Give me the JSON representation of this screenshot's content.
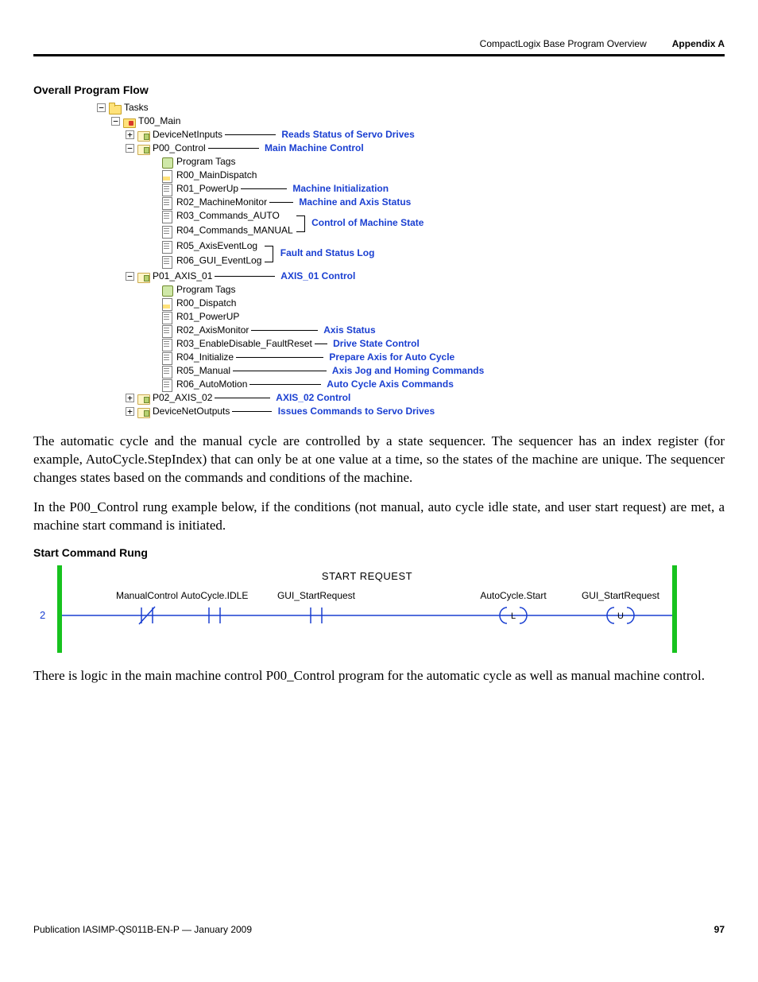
{
  "header": {
    "left": "CompactLogix Base Program Overview",
    "right": "Appendix A"
  },
  "section1_title": "Overall Program Flow",
  "tree": {
    "dash_color": "#000000",
    "annotation_color": "#1a3fd1",
    "nodes": [
      {
        "indent": 0,
        "pm": "-",
        "icon": "folder",
        "label": "Tasks"
      },
      {
        "indent": 1,
        "pm": "-",
        "icon": "folder-red",
        "label": "T00_Main"
      },
      {
        "indent": 2,
        "pm": "+",
        "icon": "prog",
        "label": "DeviceNetInputs",
        "dash": 64,
        "ann": "Reads Status of Servo Drives"
      },
      {
        "indent": 2,
        "pm": "-",
        "icon": "prog",
        "label": "P00_Control",
        "dash": 64,
        "ann": "Main Machine Control"
      },
      {
        "indent": 3,
        "icon": "tags",
        "label": "Program Tags"
      },
      {
        "indent": 3,
        "icon": "doc-y",
        "label": "R00_MainDispatch"
      },
      {
        "indent": 3,
        "icon": "doc",
        "label": "R01_PowerUp",
        "dash": 58,
        "ann": "Machine Initialization"
      },
      {
        "indent": 3,
        "icon": "doc",
        "label": "R02_MachineMonitor",
        "dash": 30,
        "ann": "Machine and Axis Status"
      },
      {
        "indent": 3,
        "icon": "doc",
        "label": "R03_Commands_AUTO",
        "bracket_top": true
      },
      {
        "indent": 3,
        "icon": "doc",
        "label": "R04_Commands_MANUAL",
        "bracket_bottom": true,
        "bracket_ann": "Control of Machine State",
        "bracket_h": 19
      },
      {
        "indent": 3,
        "icon": "doc",
        "label": "R05_AxisEventLog",
        "bracket_top": true
      },
      {
        "indent": 3,
        "icon": "doc",
        "label": "R06_GUI_EventLog",
        "bracket_bottom": true,
        "bracket_ann": "Fault and Status Log",
        "bracket_h": 19
      },
      {
        "indent": 2,
        "pm": "-",
        "icon": "prog",
        "label": "P01_AXIS_01",
        "dash": 76,
        "ann": "AXIS_01 Control"
      },
      {
        "indent": 3,
        "icon": "tags",
        "label": "Program Tags"
      },
      {
        "indent": 3,
        "icon": "doc-y",
        "label": "R00_Dispatch"
      },
      {
        "indent": 3,
        "icon": "doc",
        "label": "R01_PowerUP"
      },
      {
        "indent": 3,
        "icon": "doc",
        "label": "R02_AxisMonitor",
        "dash": 84,
        "ann": "Axis Status"
      },
      {
        "indent": 3,
        "icon": "doc",
        "label": "R03_EnableDisable_FaultReset",
        "dash": 16,
        "ann": "Drive State Control"
      },
      {
        "indent": 3,
        "icon": "doc",
        "label": "R04_Initialize",
        "dash": 110,
        "ann": "Prepare Axis for Auto Cycle"
      },
      {
        "indent": 3,
        "icon": "doc",
        "label": "R05_Manual",
        "dash": 118,
        "ann": "Axis Jog and Homing Commands"
      },
      {
        "indent": 3,
        "icon": "doc",
        "label": "R06_AutoMotion",
        "dash": 90,
        "ann": "Auto Cycle Axis Commands"
      },
      {
        "indent": 2,
        "pm": "+",
        "icon": "prog",
        "label": "P02_AXIS_02",
        "dash": 70,
        "ann": "AXIS_02 Control"
      },
      {
        "indent": 2,
        "pm": "+",
        "icon": "prog",
        "label": "DeviceNetOutputs",
        "dash": 50,
        "ann": "Issues Commands to Servo Drives"
      }
    ]
  },
  "para1": "The automatic cycle and the manual cycle are controlled by a state sequencer. The sequencer has an index register (for example, AutoCycle.StepIndex) that can only be at one value at a time, so the states of the machine are unique. The sequencer changes states based on the commands and conditions of the machine.",
  "para2": "In the P00_Control rung example below, if the conditions (not manual, auto cycle idle state, and user start request) are met, a machine start command is initiated.",
  "section2_title": "Start Command Rung",
  "rung": {
    "rail_color": "#17c21e",
    "line_color": "#1a3fd1",
    "title": "START REQUEST",
    "number": "2",
    "labels": {
      "manualcontrol": "ManualControl",
      "autocycleidle": "AutoCycle.IDLE",
      "guistartreq": "GUI_StartRequest",
      "autocyclestart": "AutoCycle.Start",
      "guistartreq_out": "GUI_StartRequest"
    }
  },
  "para3": "There is logic in the main machine control P00_Control program for the automatic cycle as well as manual machine control.",
  "footer": {
    "pub": "Publication IASIMP-QS011B-EN-P — January 2009",
    "page": "97"
  }
}
